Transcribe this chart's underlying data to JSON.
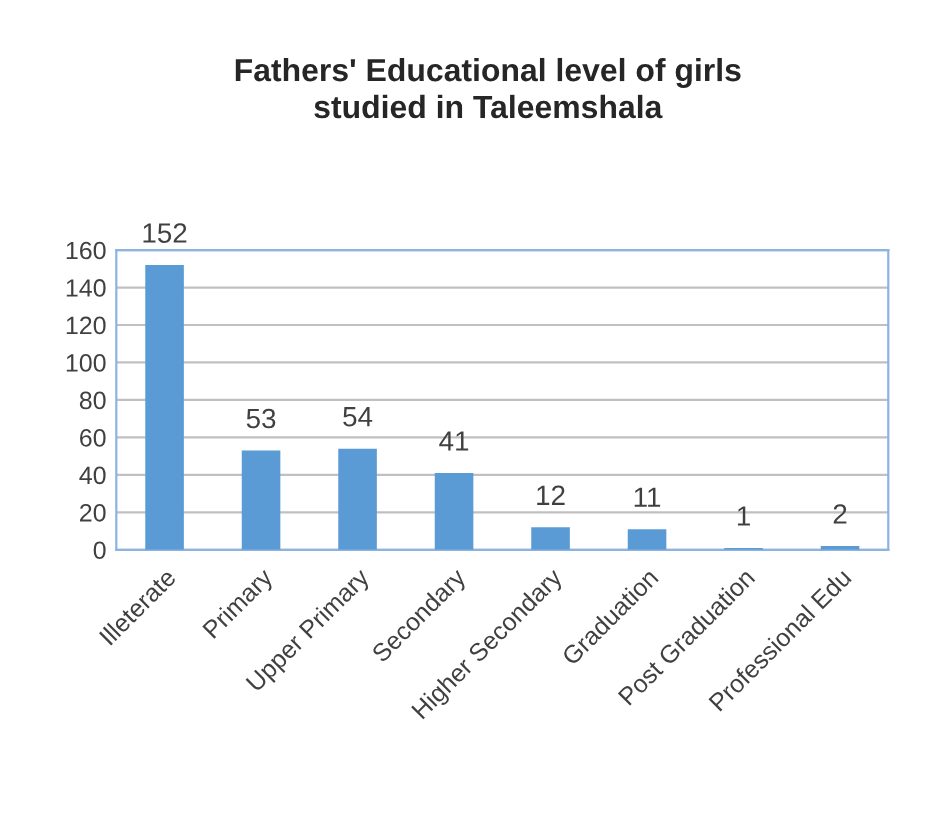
{
  "chart_data": {
    "type": "bar",
    "title": "Fathers' Educational level of girls\nstudied in Taleemshala",
    "categories": [
      "Illeterate",
      "Primary",
      "Upper Primary",
      "Secondary",
      "Higher Secondary",
      "Graduation",
      "Post Graduation",
      "Professional Edu"
    ],
    "values": [
      152,
      53,
      54,
      41,
      12,
      11,
      1,
      2
    ],
    "color": "#5b9bd5",
    "ylim": [
      0,
      160
    ],
    "yticks": [
      0,
      20,
      40,
      60,
      80,
      100,
      120,
      140,
      160
    ],
    "grid": "y",
    "data_labels": true
  }
}
